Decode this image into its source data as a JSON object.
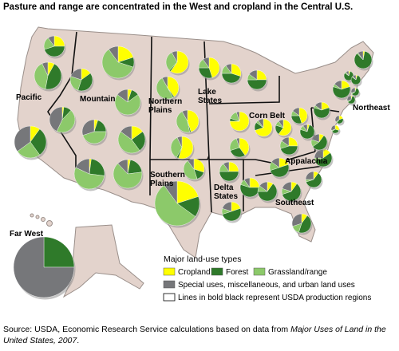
{
  "title": "Pasture and range are concentrated in the West and cropland in the Central U.S.",
  "regions": [
    {
      "lines": [
        "Pacific"
      ]
    },
    {
      "lines": [
        "Mountain"
      ]
    },
    {
      "lines": [
        "Northern",
        "Plains"
      ]
    },
    {
      "lines": [
        "Lake",
        "States"
      ]
    },
    {
      "lines": [
        "Corn Belt"
      ]
    },
    {
      "lines": [
        "Northeast"
      ]
    },
    {
      "lines": [
        "Appalachia"
      ]
    },
    {
      "lines": [
        "Southeast"
      ]
    },
    {
      "lines": [
        "Delta",
        "States"
      ]
    },
    {
      "lines": [
        "Southern",
        "Plains"
      ]
    },
    {
      "lines": [
        "Far West"
      ]
    }
  ],
  "legend": {
    "title": "Major land-use types",
    "items": [
      {
        "label": "Cropland",
        "color": "#ffff00"
      },
      {
        "label": "Forest",
        "color": "#2f7a2a"
      },
      {
        "label": "Grassland/range",
        "color": "#8cc96a"
      },
      {
        "label": "Special uses, miscellaneous, and urban land uses",
        "color": "#76777a"
      }
    ],
    "note": "Lines in bold black represent USDA production regions"
  },
  "pies": [
    {
      "values": [
        25,
        45,
        20,
        10
      ]
    },
    {
      "values": [
        8,
        45,
        40,
        7
      ]
    },
    {
      "values": [
        10,
        30,
        25,
        35
      ]
    },
    {
      "values": [
        15,
        40,
        25,
        20
      ]
    },
    {
      "values": [
        2,
        10,
        45,
        43
      ]
    },
    {
      "values": [
        20,
        10,
        60,
        10
      ]
    },
    {
      "values": [
        5,
        10,
        70,
        15
      ]
    },
    {
      "values": [
        5,
        20,
        45,
        30
      ]
    },
    {
      "values": [
        15,
        25,
        45,
        15
      ]
    },
    {
      "values": [
        2,
        25,
        55,
        18
      ]
    },
    {
      "values": [
        3,
        20,
        65,
        12
      ]
    },
    {
      "values": [
        60,
        2,
        30,
        8
      ]
    },
    {
      "values": [
        40,
        2,
        50,
        8
      ]
    },
    {
      "values": [
        45,
        2,
        45,
        8
      ]
    },
    {
      "values": [
        55,
        3,
        35,
        7
      ]
    },
    {
      "values": [
        30,
        15,
        45,
        10
      ]
    },
    {
      "values": [
        20,
        15,
        55,
        10
      ]
    },
    {
      "values": [
        45,
        30,
        15,
        10
      ]
    },
    {
      "values": [
        30,
        45,
        15,
        10
      ]
    },
    {
      "values": [
        25,
        50,
        10,
        15
      ]
    },
    {
      "values": [
        75,
        5,
        15,
        5
      ]
    },
    {
      "values": [
        40,
        30,
        25,
        5
      ]
    },
    {
      "values": [
        70,
        15,
        5,
        10
      ]
    },
    {
      "values": [
        60,
        20,
        10,
        10
      ]
    },
    {
      "values": [
        45,
        30,
        10,
        15
      ]
    },
    {
      "values": [
        25,
        50,
        15,
        10
      ]
    },
    {
      "values": [
        20,
        50,
        10,
        20
      ]
    },
    {
      "values": [
        25,
        55,
        10,
        10
      ]
    },
    {
      "values": [
        25,
        45,
        15,
        15
      ]
    },
    {
      "values": [
        20,
        50,
        15,
        15
      ]
    },
    {
      "values": [
        10,
        65,
        10,
        15
      ]
    },
    {
      "values": [
        10,
        60,
        10,
        20
      ]
    },
    {
      "values": [
        10,
        45,
        15,
        30
      ]
    },
    {
      "values": [
        10,
        60,
        5,
        25
      ]
    },
    {
      "values": [
        15,
        55,
        5,
        25
      ]
    },
    {
      "values": [
        10,
        55,
        15,
        20
      ]
    },
    {
      "values": [
        5,
        75,
        10,
        10
      ]
    },
    {
      "values": [
        20,
        60,
        5,
        15
      ]
    },
    {
      "values": [
        20,
        60,
        5,
        15
      ]
    },
    {
      "values": [
        3,
        85,
        2,
        10
      ]
    },
    {
      "values": [
        5,
        80,
        5,
        10
      ]
    },
    {
      "values": [
        5,
        80,
        3,
        12
      ]
    },
    {
      "values": [
        5,
        60,
        5,
        30
      ]
    },
    {
      "values": [
        5,
        60,
        5,
        30
      ]
    },
    {
      "values": [
        20,
        40,
        5,
        35
      ]
    },
    {
      "values": [
        30,
        35,
        5,
        30
      ]
    },
    {
      "values": [
        0,
        25,
        0,
        75
      ]
    }
  ],
  "source": {
    "prefix": "Source: USDA, Economic Research Service calculations based on data from ",
    "italic": "Major Uses of Land in the United States, 2007",
    "suffix": "."
  }
}
